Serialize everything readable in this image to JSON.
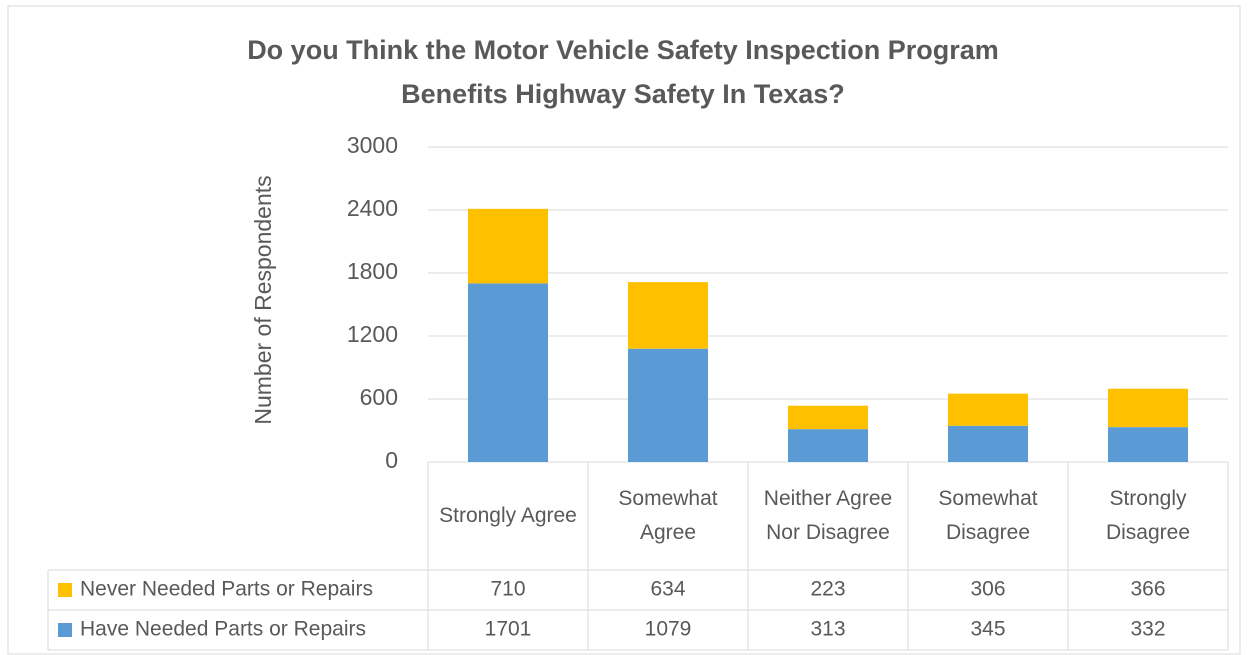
{
  "chart_data": {
    "type": "bar",
    "stacked": true,
    "title": [
      "Do you Think the Motor Vehicle Safety Inspection Program",
      "Benefits Highway Safety In Texas?"
    ],
    "y_label": "Number of Respondents",
    "categories": [
      "Strongly Agree",
      "Somewhat Agree",
      "Neither Agree Nor Disagree",
      "Somewhat Disagree",
      "Strongly Disagree"
    ],
    "series": [
      {
        "name": "Have Needed Parts or Repairs",
        "color": "#5b9bd5",
        "values": [
          1701,
          1079,
          313,
          345,
          332
        ]
      },
      {
        "name": "Never Needed Parts or Repairs",
        "color": "#ffc000",
        "values": [
          710,
          634,
          223,
          306,
          366
        ]
      }
    ],
    "ylim": [
      0,
      3000
    ],
    "yticks": [
      0,
      600,
      1200,
      1800,
      2400,
      3000
    ],
    "grid": true,
    "data_table": true
  }
}
